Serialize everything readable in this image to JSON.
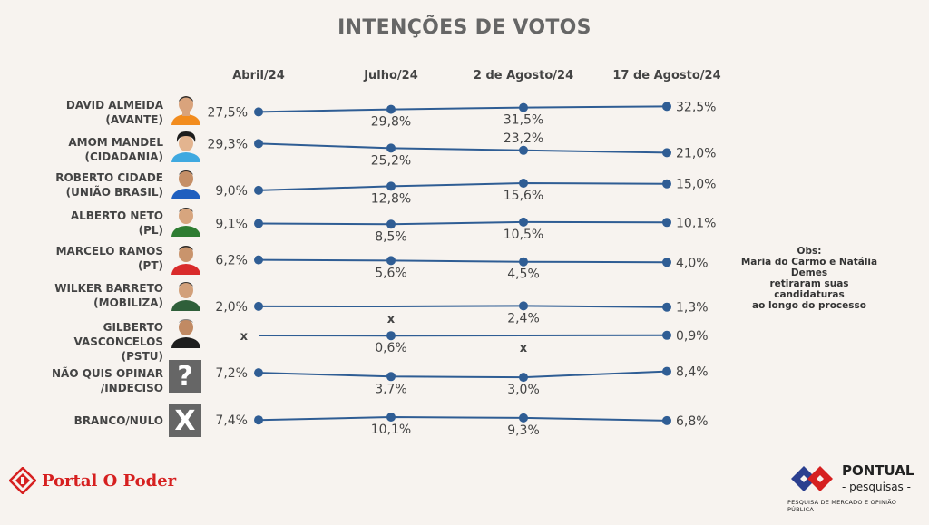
{
  "title": "INTENÇÕES DE VOTOS",
  "chart_data": {
    "type": "line",
    "title": "INTENÇÕES DE VOTOS",
    "categories": [
      "Abril/24",
      "Julho/24",
      "2 de Agosto/24",
      "17 de Agosto/24"
    ],
    "series": [
      {
        "name": "DAVID ALMEIDA (AVANTE)",
        "line1": "DAVID ALMEIDA",
        "line2": "(AVANTE)",
        "values": [
          27.5,
          29.8,
          31.5,
          32.5
        ],
        "labels": [
          "27,5%",
          "29,8%",
          "31,5%",
          "32,5%"
        ]
      },
      {
        "name": "AMOM MANDEL (CIDADANIA)",
        "line1": "AMOM MANDEL",
        "line2": "(CIDADANIA)",
        "values": [
          29.3,
          25.2,
          23.2,
          21.0
        ],
        "labels": [
          "29,3%",
          "25,2%",
          "23,2%",
          "21,0%"
        ]
      },
      {
        "name": "ROBERTO CIDADE (UNIÃO BRASIL)",
        "line1": "ROBERTO CIDADE",
        "line2": "(UNIÃO BRASIL)",
        "values": [
          9.0,
          12.8,
          15.6,
          15.0
        ],
        "labels": [
          "9,0%",
          "12,8%",
          "15,6%",
          "15,0%"
        ]
      },
      {
        "name": "ALBERTO NETO (PL)",
        "line1": "ALBERTO NETO",
        "line2": "(PL)",
        "values": [
          9.1,
          8.5,
          10.5,
          10.1
        ],
        "labels": [
          "9,1%",
          "8,5%",
          "10,5%",
          "10,1%"
        ]
      },
      {
        "name": "MARCELO RAMOS (PT)",
        "line1": "MARCELO RAMOS",
        "line2": "(PT)",
        "values": [
          6.2,
          5.6,
          4.5,
          4.0
        ],
        "labels": [
          "6,2%",
          "5,6%",
          "4,5%",
          "4,0%"
        ]
      },
      {
        "name": "WILKER BARRETO (MOBILIZA)",
        "line1": "WILKER BARRETO",
        "line2": "(MOBILIZA)",
        "values": [
          2.0,
          null,
          2.4,
          1.3
        ],
        "labels": [
          "2,0%",
          "x",
          "2,4%",
          "1,3%"
        ]
      },
      {
        "name": "GILBERTO VASCONCELOS (PSTU)",
        "line1": "GILBERTO VASCONCELOS",
        "line2": "(PSTU)",
        "values": [
          null,
          0.6,
          null,
          0.9
        ],
        "labels": [
          "x",
          "0,6%",
          "x",
          "0,9%"
        ]
      },
      {
        "name": "NÃO QUIS OPINAR /INDECISO",
        "line1": "NÃO QUIS OPINAR",
        "line2": "/INDECISO",
        "values": [
          7.2,
          3.7,
          3.0,
          8.4
        ],
        "labels": [
          "7,2%",
          "3,7%",
          "3,0%",
          "8,4%"
        ]
      },
      {
        "name": "BRANCO/NULO",
        "line1": "BRANCO/NULO",
        "line2": "",
        "values": [
          7.4,
          10.1,
          9.3,
          6.8
        ],
        "labels": [
          "7,4%",
          "10,1%",
          "9,3%",
          "6,8%"
        ]
      }
    ],
    "line_color": "#2f5d94",
    "marker_color": "#2f5d94"
  },
  "icons": {
    "undecided": "?",
    "blank": "X"
  },
  "obs": {
    "line1": "Obs:",
    "line2": "Maria do Carmo e Natália Demes",
    "line3": "retiraram suas candidaturas",
    "line4": "ao longo do processo"
  },
  "brand_left": {
    "name": "Portal O Poder",
    "color": "#d62020"
  },
  "brand_right": {
    "name": "PONTUAL",
    "sub": "- pesquisas -",
    "tagline": "PESQUISA DE MERCADO E OPINIÃO PÚBLICA",
    "blue": "#2b3f8f",
    "red": "#d62020"
  }
}
